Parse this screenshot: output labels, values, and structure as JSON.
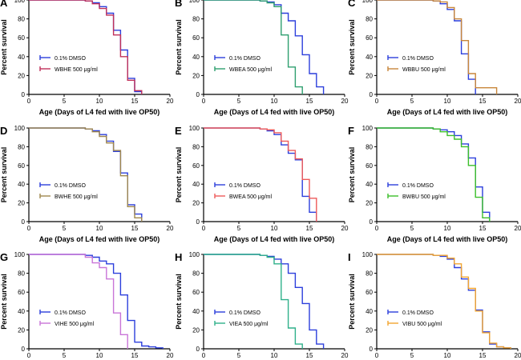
{
  "chart_data": [
    {
      "panel": "A",
      "type": "line",
      "xlabel": "Age (Days of L4 fed with live OP50)",
      "ylabel": "Percent survival",
      "xlim": [
        0,
        20
      ],
      "ylim": [
        0,
        100
      ],
      "xticks": [
        "0",
        "5",
        "10",
        "15",
        "20"
      ],
      "yticks": [
        "0",
        "20",
        "40",
        "60",
        "80",
        "100"
      ],
      "legend": "bottom-left",
      "series": [
        {
          "name": "0.1% DMSO",
          "color": "#2c3fdc",
          "x": [
            0,
            6,
            8,
            9,
            10,
            11,
            12,
            13,
            14,
            15,
            16
          ],
          "y": [
            100,
            100,
            99,
            97,
            93,
            86,
            68,
            47,
            17,
            3,
            0
          ]
        },
        {
          "name": "WBHE 500 μg/ml",
          "color": "#c0305a",
          "x": [
            0,
            6,
            8,
            9,
            10,
            11,
            12,
            13,
            14,
            15,
            16
          ],
          "y": [
            100,
            100,
            99,
            96,
            91,
            84,
            63,
            40,
            15,
            4,
            0
          ]
        }
      ]
    },
    {
      "panel": "B",
      "type": "line",
      "xlabel": "Age (Days of L4 fed with live OP50)",
      "ylabel": "Percent survival",
      "xlim": [
        0,
        20
      ],
      "ylim": [
        0,
        100
      ],
      "xticks": [
        "0",
        "5",
        "10",
        "15",
        "20"
      ],
      "yticks": [
        "0",
        "20",
        "40",
        "60",
        "80",
        "100"
      ],
      "legend": "bottom-left",
      "series": [
        {
          "name": "0.1% DMSO",
          "color": "#2c3fdc",
          "x": [
            0,
            6,
            8,
            9,
            10,
            11,
            12,
            13,
            14,
            15,
            16,
            17
          ],
          "y": [
            100,
            100,
            99,
            98,
            95,
            86,
            78,
            62,
            42,
            22,
            8,
            0
          ]
        },
        {
          "name": "WBEA 500 μg/ml",
          "color": "#2e9f6f",
          "x": [
            0,
            6,
            8,
            9,
            10,
            11,
            12,
            13,
            14
          ],
          "y": [
            100,
            100,
            99,
            97,
            93,
            63,
            29,
            8,
            0
          ]
        }
      ]
    },
    {
      "panel": "C",
      "type": "line",
      "xlabel": "Age (Days of L4 fed with live OP50)",
      "ylabel": "Percent survival",
      "xlim": [
        0,
        20
      ],
      "ylim": [
        0,
        100
      ],
      "xticks": [
        "0",
        "5",
        "10",
        "15",
        "20"
      ],
      "yticks": [
        "0",
        "20",
        "40",
        "60",
        "80",
        "100"
      ],
      "legend": "bottom-left",
      "series": [
        {
          "name": "0.1% DMSO",
          "color": "#2c3fdc",
          "x": [
            0,
            6,
            8,
            9,
            10,
            11,
            12,
            13,
            14
          ],
          "y": [
            100,
            100,
            99,
            96,
            90,
            78,
            43,
            16,
            0
          ]
        },
        {
          "name": "WBBU 500 μg/ml",
          "color": "#c8863a",
          "x": [
            0,
            6,
            8,
            9,
            10,
            11,
            12,
            13,
            14,
            17
          ],
          "y": [
            100,
            100,
            99,
            98,
            92,
            80,
            57,
            22,
            7,
            0
          ]
        }
      ]
    },
    {
      "panel": "D",
      "type": "line",
      "xlabel": "Age (Days of L4 fed with live OP50)",
      "ylabel": "Percent survival",
      "xlim": [
        0,
        20
      ],
      "ylim": [
        0,
        100
      ],
      "xticks": [
        "0",
        "5",
        "10",
        "15",
        "20"
      ],
      "yticks": [
        "0",
        "20",
        "40",
        "60",
        "80",
        "100"
      ],
      "legend": "bottom-left",
      "series": [
        {
          "name": "0.1% DMSO",
          "color": "#2c3fdc",
          "x": [
            0,
            6,
            8,
            9,
            10,
            11,
            12,
            13,
            14,
            15,
            16
          ],
          "y": [
            100,
            100,
            99,
            97,
            93,
            86,
            75,
            52,
            18,
            8,
            0
          ]
        },
        {
          "name": "BWHE 500 μg/ml",
          "color": "#a0884e",
          "x": [
            0,
            6,
            8,
            9,
            10,
            11,
            12,
            13,
            14,
            15,
            16
          ],
          "y": [
            100,
            100,
            99,
            96,
            91,
            84,
            76,
            49,
            16,
            4,
            0
          ]
        }
      ]
    },
    {
      "panel": "E",
      "type": "line",
      "xlabel": "Age (Days of L4 fed with live OP50)",
      "ylabel": "Percent survival",
      "xlim": [
        0,
        20
      ],
      "ylim": [
        0,
        100
      ],
      "xticks": [
        "0",
        "5",
        "10",
        "15",
        "20"
      ],
      "yticks": [
        "0",
        "20",
        "40",
        "60",
        "80",
        "100"
      ],
      "legend": "bottom-left",
      "series": [
        {
          "name": "0.1% DMSO",
          "color": "#2c3fdc",
          "x": [
            0,
            6,
            8,
            9,
            10,
            11,
            12,
            13,
            14,
            15,
            16
          ],
          "y": [
            100,
            100,
            99,
            97,
            93,
            82,
            73,
            66,
            27,
            10,
            0
          ]
        },
        {
          "name": "BWEA 500 μg/ml",
          "color": "#ee5a5a",
          "x": [
            0,
            6,
            8,
            9,
            10,
            11,
            12,
            13,
            14,
            15,
            16
          ],
          "y": [
            100,
            100,
            99,
            98,
            95,
            86,
            76,
            67,
            45,
            25,
            0
          ]
        }
      ]
    },
    {
      "panel": "F",
      "type": "line",
      "xlabel": "Age (Days of L4 fed with live OP50)",
      "ylabel": "Percent survival",
      "xlim": [
        0,
        20
      ],
      "ylim": [
        0,
        100
      ],
      "xticks": [
        "0",
        "5",
        "10",
        "15",
        "20"
      ],
      "yticks": [
        "0",
        "20",
        "40",
        "60",
        "80",
        "100"
      ],
      "legend": "bottom-left",
      "series": [
        {
          "name": "0.1% DMSO",
          "color": "#2c3fdc",
          "x": [
            0,
            6,
            8,
            9,
            10,
            11,
            12,
            13,
            14,
            15,
            16
          ],
          "y": [
            100,
            100,
            99,
            98,
            96,
            92,
            83,
            68,
            37,
            10,
            0
          ]
        },
        {
          "name": "BWBU 500 μg/ml",
          "color": "#3bbf2a",
          "x": [
            0,
            6,
            8,
            9,
            10,
            11,
            12,
            13,
            14,
            15,
            16
          ],
          "y": [
            100,
            100,
            99,
            96,
            92,
            88,
            80,
            60,
            26,
            4,
            0
          ]
        }
      ]
    },
    {
      "panel": "G",
      "type": "line",
      "xlabel": "",
      "ylabel": "Percent survival",
      "xlim": [
        0,
        20
      ],
      "ylim": [
        0,
        100
      ],
      "xticks": [
        "0",
        "5",
        "10",
        "15",
        "20"
      ],
      "yticks": [
        "0",
        "20",
        "40",
        "60",
        "80",
        "100"
      ],
      "legend": "bottom-left",
      "series": [
        {
          "name": "0.1% DMSO",
          "color": "#2c3fdc",
          "x": [
            0,
            6,
            8,
            9,
            10,
            11,
            12,
            13,
            14,
            15,
            16,
            17,
            18,
            19
          ],
          "y": [
            100,
            100,
            99,
            97,
            93,
            90,
            80,
            57,
            30,
            7,
            3,
            2,
            1,
            0
          ]
        },
        {
          "name": "VIHE 500 μg/ml",
          "color": "#c975d8",
          "x": [
            0,
            6,
            8,
            9,
            10,
            11,
            12,
            13,
            14
          ],
          "y": [
            100,
            100,
            97,
            91,
            86,
            74,
            38,
            15,
            0
          ]
        }
      ]
    },
    {
      "panel": "H",
      "type": "line",
      "xlabel": "",
      "ylabel": "Percent survival",
      "xlim": [
        0,
        20
      ],
      "ylim": [
        0,
        100
      ],
      "xticks": [
        "0",
        "5",
        "10",
        "15",
        "20"
      ],
      "yticks": [
        "0",
        "20",
        "40",
        "60",
        "80",
        "100"
      ],
      "legend": "bottom-left",
      "series": [
        {
          "name": "0.1% DMSO",
          "color": "#2c3fdc",
          "x": [
            0,
            6,
            8,
            9,
            10,
            11,
            12,
            13,
            14,
            15,
            16,
            17
          ],
          "y": [
            100,
            100,
            99,
            98,
            95,
            90,
            80,
            65,
            48,
            20,
            5,
            0
          ]
        },
        {
          "name": "VIEA 500 μg/ml",
          "color": "#2fb08a",
          "x": [
            0,
            6,
            8,
            9,
            10,
            11,
            12,
            13,
            14
          ],
          "y": [
            100,
            100,
            99,
            97,
            90,
            52,
            22,
            5,
            0
          ]
        }
      ]
    },
    {
      "panel": "I",
      "type": "line",
      "xlabel": "",
      "ylabel": "Percent survival",
      "xlim": [
        0,
        20
      ],
      "ylim": [
        0,
        100
      ],
      "xticks": [
        "0",
        "5",
        "10",
        "15",
        "20"
      ],
      "yticks": [
        "0",
        "20",
        "40",
        "60",
        "80",
        "100"
      ],
      "legend": "bottom-left",
      "series": [
        {
          "name": "0.1% DMSO",
          "color": "#2c3fdc",
          "x": [
            0,
            6,
            8,
            9,
            10,
            11,
            12,
            13,
            14,
            15,
            16,
            17,
            18,
            19
          ],
          "y": [
            100,
            100,
            99,
            98,
            95,
            86,
            74,
            62,
            41,
            18,
            5,
            2,
            1,
            0
          ]
        },
        {
          "name": "VIBU 500 μg/ml",
          "color": "#f2a530",
          "x": [
            0,
            6,
            8,
            9,
            10,
            11,
            12,
            13,
            14,
            15,
            16,
            17,
            18,
            19
          ],
          "y": [
            100,
            100,
            99,
            99,
            96,
            90,
            76,
            64,
            40,
            17,
            6,
            2,
            1,
            0
          ]
        }
      ]
    }
  ]
}
